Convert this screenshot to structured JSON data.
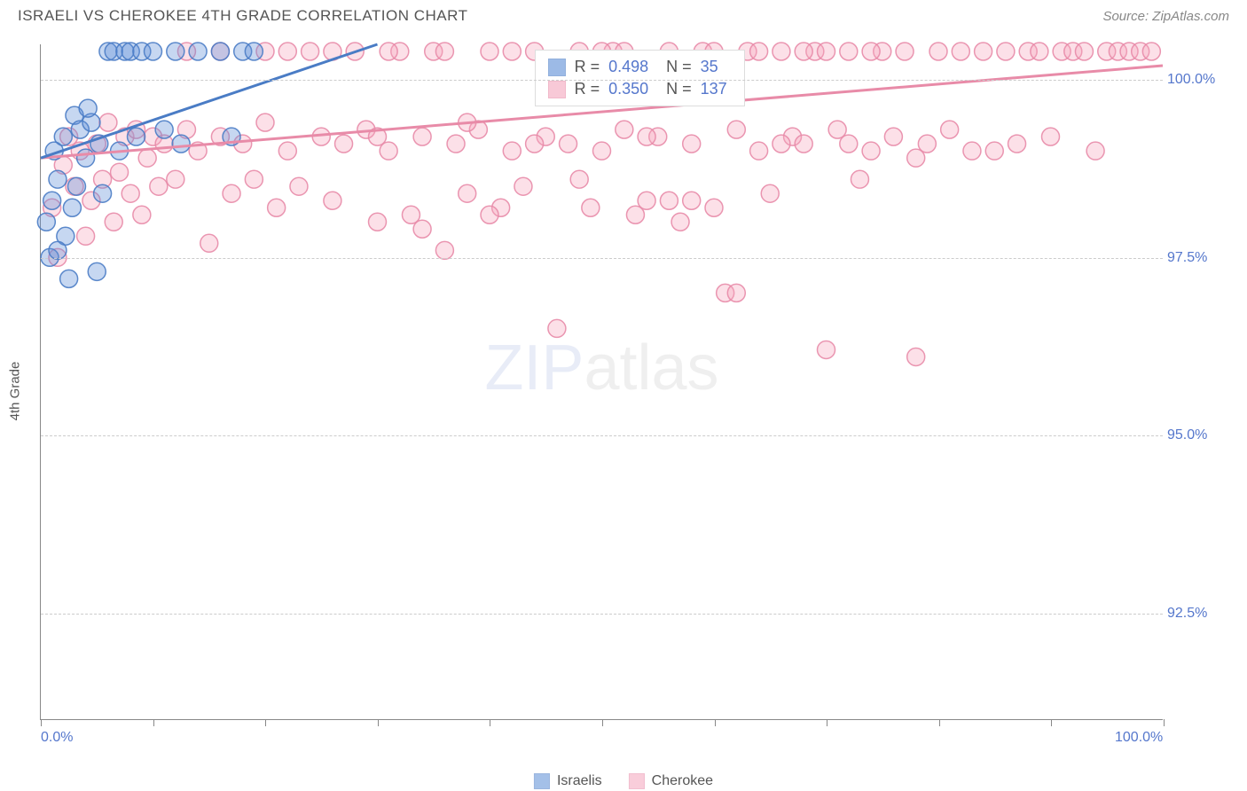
{
  "title": "ISRAELI VS CHEROKEE 4TH GRADE CORRELATION CHART",
  "source": "Source: ZipAtlas.com",
  "ylabel": "4th Grade",
  "watermark": {
    "part1": "ZIP",
    "part2": "atlas"
  },
  "chart": {
    "type": "scatter",
    "background_color": "#ffffff",
    "grid_color": "#cccccc",
    "axis_color": "#888888",
    "label_color": "#5577cc",
    "text_color": "#555555",
    "xlim": [
      0,
      100
    ],
    "ylim": [
      91,
      100.5
    ],
    "xticks_minor": [
      0,
      10,
      20,
      30,
      40,
      50,
      60,
      70,
      80,
      90,
      100
    ],
    "xtick_labels": [
      {
        "x": 0,
        "label": "0.0%"
      },
      {
        "x": 100,
        "label": "100.0%"
      }
    ],
    "yticks": [
      {
        "y": 92.5,
        "label": "92.5%"
      },
      {
        "y": 95.0,
        "label": "95.0%"
      },
      {
        "y": 97.5,
        "label": "97.5%"
      },
      {
        "y": 100.0,
        "label": "100.0%"
      }
    ],
    "marker_radius": 10,
    "marker_fill_opacity": 0.35,
    "marker_stroke_opacity": 0.9,
    "line_width": 3,
    "series": [
      {
        "name": "Israelis",
        "color": "#5b8dd6",
        "stroke": "#4a7cc5",
        "r_value": "0.498",
        "n_value": "35",
        "trend": {
          "x1": 0,
          "y1": 98.9,
          "x2": 30,
          "y2": 100.5
        },
        "points": [
          [
            0.5,
            98.0
          ],
          [
            0.8,
            97.5
          ],
          [
            1.0,
            98.3
          ],
          [
            1.2,
            99.0
          ],
          [
            1.5,
            98.6
          ],
          [
            2.0,
            99.2
          ],
          [
            2.2,
            97.8
          ],
          [
            2.5,
            97.2
          ],
          [
            3.0,
            99.5
          ],
          [
            3.2,
            98.5
          ],
          [
            3.5,
            99.3
          ],
          [
            4.0,
            98.9
          ],
          [
            4.5,
            99.4
          ],
          [
            5.0,
            97.3
          ],
          [
            5.2,
            99.1
          ],
          [
            5.5,
            98.4
          ],
          [
            6.0,
            100.4
          ],
          [
            6.5,
            100.4
          ],
          [
            7.0,
            99.0
          ],
          [
            7.5,
            100.4
          ],
          [
            8.0,
            100.4
          ],
          [
            8.5,
            99.2
          ],
          [
            9.0,
            100.4
          ],
          [
            10.0,
            100.4
          ],
          [
            11.0,
            99.3
          ],
          [
            12.0,
            100.4
          ],
          [
            12.5,
            99.1
          ],
          [
            14.0,
            100.4
          ],
          [
            16.0,
            100.4
          ],
          [
            17.0,
            99.2
          ],
          [
            18.0,
            100.4
          ],
          [
            19.0,
            100.4
          ],
          [
            1.5,
            97.6
          ],
          [
            2.8,
            98.2
          ],
          [
            4.2,
            99.6
          ]
        ]
      },
      {
        "name": "Cherokee",
        "color": "#f5a6bd",
        "stroke": "#e88ba8",
        "r_value": "0.350",
        "n_value": "137",
        "trend": {
          "x1": 0,
          "y1": 98.9,
          "x2": 100,
          "y2": 100.2
        },
        "points": [
          [
            1.0,
            98.2
          ],
          [
            1.5,
            97.5
          ],
          [
            2.0,
            98.8
          ],
          [
            2.5,
            99.2
          ],
          [
            3.0,
            98.5
          ],
          [
            3.5,
            99.0
          ],
          [
            4.0,
            97.8
          ],
          [
            4.5,
            98.3
          ],
          [
            5.0,
            99.1
          ],
          [
            5.5,
            98.6
          ],
          [
            6.0,
            99.4
          ],
          [
            6.5,
            98.0
          ],
          [
            7.0,
            98.7
          ],
          [
            7.5,
            99.2
          ],
          [
            8.0,
            98.4
          ],
          [
            8.5,
            99.3
          ],
          [
            9.0,
            98.1
          ],
          [
            9.5,
            98.9
          ],
          [
            10.0,
            99.2
          ],
          [
            10.5,
            98.5
          ],
          [
            11.0,
            99.1
          ],
          [
            12.0,
            98.6
          ],
          [
            13.0,
            99.3
          ],
          [
            14.0,
            99.0
          ],
          [
            15.0,
            97.7
          ],
          [
            16.0,
            99.2
          ],
          [
            17.0,
            98.4
          ],
          [
            18.0,
            99.1
          ],
          [
            19.0,
            98.6
          ],
          [
            20.0,
            99.4
          ],
          [
            21.0,
            98.2
          ],
          [
            22.0,
            99.0
          ],
          [
            23.0,
            98.5
          ],
          [
            24.0,
            100.4
          ],
          [
            25.0,
            99.2
          ],
          [
            26.0,
            98.3
          ],
          [
            27.0,
            99.1
          ],
          [
            28.0,
            100.4
          ],
          [
            29.0,
            99.3
          ],
          [
            30.0,
            98.0
          ],
          [
            31.0,
            99.0
          ],
          [
            32.0,
            100.4
          ],
          [
            33.0,
            98.1
          ],
          [
            34.0,
            99.2
          ],
          [
            35.0,
            100.4
          ],
          [
            36.0,
            97.6
          ],
          [
            37.0,
            99.1
          ],
          [
            38.0,
            98.4
          ],
          [
            39.0,
            99.3
          ],
          [
            40.0,
            100.4
          ],
          [
            41.0,
            98.2
          ],
          [
            42.0,
            99.0
          ],
          [
            43.0,
            98.5
          ],
          [
            44.0,
            100.4
          ],
          [
            45.0,
            99.2
          ],
          [
            46.0,
            96.5
          ],
          [
            47.0,
            99.1
          ],
          [
            48.0,
            100.4
          ],
          [
            49.0,
            98.2
          ],
          [
            50.0,
            99.0
          ],
          [
            51.0,
            100.4
          ],
          [
            52.0,
            99.3
          ],
          [
            53.0,
            98.1
          ],
          [
            54.0,
            98.3
          ],
          [
            55.0,
            99.2
          ],
          [
            56.0,
            100.4
          ],
          [
            57.0,
            98.0
          ],
          [
            58.0,
            99.1
          ],
          [
            59.0,
            100.4
          ],
          [
            60.0,
            98.2
          ],
          [
            61.0,
            97.0
          ],
          [
            62.0,
            99.3
          ],
          [
            63.0,
            100.4
          ],
          [
            64.0,
            99.0
          ],
          [
            65.0,
            98.4
          ],
          [
            66.0,
            100.4
          ],
          [
            67.0,
            99.2
          ],
          [
            68.0,
            99.1
          ],
          [
            69.0,
            100.4
          ],
          [
            70.0,
            96.2
          ],
          [
            71.0,
            99.3
          ],
          [
            72.0,
            100.4
          ],
          [
            73.0,
            98.6
          ],
          [
            74.0,
            99.0
          ],
          [
            75.0,
            100.4
          ],
          [
            76.0,
            99.2
          ],
          [
            77.0,
            100.4
          ],
          [
            78.0,
            98.9
          ],
          [
            79.0,
            99.1
          ],
          [
            80.0,
            100.4
          ],
          [
            81.0,
            99.3
          ],
          [
            82.0,
            100.4
          ],
          [
            83.0,
            99.0
          ],
          [
            84.0,
            100.4
          ],
          [
            85.0,
            99.0
          ],
          [
            86.0,
            100.4
          ],
          [
            87.0,
            99.1
          ],
          [
            88.0,
            100.4
          ],
          [
            89.0,
            100.4
          ],
          [
            90.0,
            99.2
          ],
          [
            91.0,
            100.4
          ],
          [
            92.0,
            100.4
          ],
          [
            93.0,
            100.4
          ],
          [
            94.0,
            99.0
          ],
          [
            95.0,
            100.4
          ],
          [
            96.0,
            100.4
          ],
          [
            97.0,
            100.4
          ],
          [
            98.0,
            100.4
          ],
          [
            99.0,
            100.4
          ],
          [
            78.0,
            96.1
          ],
          [
            31.0,
            100.4
          ],
          [
            34.0,
            97.9
          ],
          [
            38.0,
            99.4
          ],
          [
            42.0,
            100.4
          ],
          [
            48.0,
            98.6
          ],
          [
            52.0,
            100.4
          ],
          [
            56.0,
            98.3
          ],
          [
            60.0,
            100.4
          ],
          [
            64.0,
            100.4
          ],
          [
            68.0,
            100.4
          ],
          [
            72.0,
            99.1
          ],
          [
            13.0,
            100.4
          ],
          [
            16.0,
            100.4
          ],
          [
            20.0,
            100.4
          ],
          [
            22.0,
            100.4
          ],
          [
            26.0,
            100.4
          ],
          [
            30.0,
            99.2
          ],
          [
            36.0,
            100.4
          ],
          [
            40.0,
            98.1
          ],
          [
            44.0,
            99.1
          ],
          [
            50.0,
            100.4
          ],
          [
            54.0,
            99.2
          ],
          [
            58.0,
            98.3
          ],
          [
            62.0,
            97.0
          ],
          [
            66.0,
            99.1
          ],
          [
            70.0,
            100.4
          ],
          [
            74.0,
            100.4
          ]
        ]
      }
    ]
  },
  "stat_box": {
    "rows": [
      {
        "color": "#5b8dd6",
        "stroke": "#4a7cc5",
        "r": "0.498",
        "n": "35"
      },
      {
        "color": "#f5a6bd",
        "stroke": "#e88ba8",
        "r": "0.350",
        "n": "137"
      }
    ],
    "label_r": "R =",
    "label_n": "N ="
  },
  "legend": {
    "items": [
      {
        "name": "Israelis",
        "color": "#5b8dd6",
        "stroke": "#4a7cc5"
      },
      {
        "name": "Cherokee",
        "color": "#f5a6bd",
        "stroke": "#e88ba8"
      }
    ]
  }
}
